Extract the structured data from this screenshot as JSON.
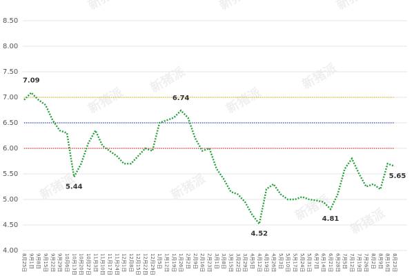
{
  "chart_data": {
    "type": "line",
    "watermark": "新猪派",
    "categories": [
      "8月25日",
      "9月1日",
      "9月8日",
      "9月15日",
      "9月22日",
      "9月29日",
      "10月6日",
      "10月13日",
      "10月20日",
      "10月27日",
      "11月3日",
      "11月10日",
      "11月17日",
      "11月24日",
      "12月1日",
      "12月8日",
      "12月15日",
      "12月22日",
      "12月29日",
      "1月5日",
      "1月12日",
      "1月19日",
      "1月26日",
      "2月2日",
      "2月9日",
      "2月16日",
      "2月23日",
      "3月1日",
      "3月8日",
      "3月15日",
      "3月22日",
      "3月29日",
      "4月5日",
      "4月12日",
      "4月19日",
      "4月26日",
      "5月3日",
      "5月10日",
      "5月17日",
      "5月24日",
      "5月31日",
      "6月7日",
      "6月14日",
      "6月21日",
      "6月28日",
      "7月5日",
      "7月12日",
      "7月19日",
      "7月26日",
      "8月2日",
      "8月9日",
      "8月16日",
      "8月23日"
    ],
    "series": [
      {
        "color": "#22a03a",
        "values": [
          6.95,
          7.09,
          6.95,
          6.85,
          6.55,
          6.35,
          6.3,
          5.44,
          5.7,
          6.1,
          6.35,
          6.05,
          5.95,
          5.85,
          5.7,
          5.7,
          5.85,
          6.0,
          5.95,
          6.5,
          6.55,
          6.6,
          6.74,
          6.6,
          6.2,
          5.95,
          6.0,
          5.6,
          5.4,
          5.15,
          5.1,
          4.95,
          4.7,
          4.52,
          5.2,
          5.3,
          5.1,
          5.0,
          5.0,
          5.05,
          5.0,
          4.98,
          4.95,
          4.81,
          5.1,
          5.6,
          5.8,
          5.5,
          5.25,
          5.3,
          5.2,
          5.7,
          5.65
        ],
        "value_labels": [
          null,
          "7.09",
          null,
          null,
          null,
          null,
          null,
          "5.44",
          null,
          null,
          null,
          null,
          null,
          null,
          null,
          null,
          null,
          null,
          null,
          null,
          null,
          null,
          "6.74",
          null,
          null,
          null,
          null,
          null,
          null,
          null,
          null,
          null,
          null,
          "4.52",
          null,
          null,
          null,
          null,
          null,
          null,
          null,
          null,
          null,
          "4.81",
          null,
          null,
          null,
          null,
          null,
          null,
          null,
          null,
          "5.65"
        ]
      }
    ],
    "reference_lines": [
      {
        "value": 7,
        "color": "#f0b429"
      },
      {
        "value": 6.5,
        "color": "#3646b8"
      },
      {
        "value": 6,
        "color": "#d9302a"
      }
    ],
    "ylim": [
      4,
      8.5
    ],
    "yticks": [
      {
        "value": 4,
        "label": "4.00"
      },
      {
        "value": 4.5,
        "label": "4.50"
      },
      {
        "value": 5,
        "label": "5.00"
      },
      {
        "value": 5.5,
        "label": "5.50"
      },
      {
        "value": 6,
        "label": "6.00"
      },
      {
        "value": 6.5,
        "label": "6.50"
      },
      {
        "value": 7,
        "label": "7.00"
      },
      {
        "value": 7.5,
        "label": "7.50"
      },
      {
        "value": 8,
        "label": "8.00"
      },
      {
        "value": 8.5,
        "label": "8.50"
      }
    ],
    "grid": true
  }
}
